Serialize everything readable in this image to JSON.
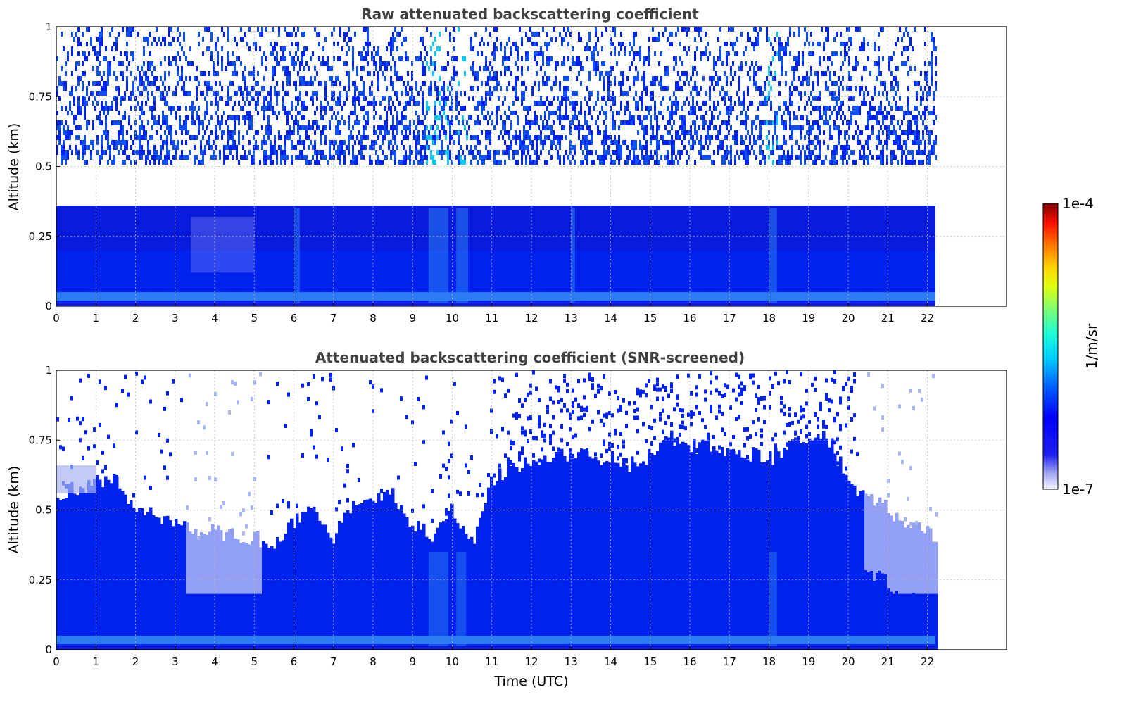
{
  "colors": {
    "white": "#ffffff",
    "blue": "#0022ee",
    "deep_blue": "#0a1ad8",
    "mid_blue": "#1050f0",
    "light_blue": "#2a7cf0",
    "cyan": "#12c8f0",
    "pale": "#aab6f4",
    "grid": "#b8b8b8",
    "title_text": "#404040"
  },
  "colorbar": {
    "label": "1/m/sr",
    "max_label": "1e-4",
    "min_label": "1e-7",
    "colormap": "jet-like (white → blue → cyan → green → yellow → red → dark red)"
  },
  "chart_data": [
    {
      "type": "heatmap",
      "title": "Raw attenuated backscattering coefficient",
      "xlabel": "",
      "ylabel": "Altitude (km)",
      "xlim": [
        0,
        24
      ],
      "ylim": [
        0,
        1
      ],
      "data_extent_x": [
        0,
        22.2
      ],
      "x_ticks": [
        "0",
        "1",
        "2",
        "3",
        "4",
        "5",
        "6",
        "7",
        "8",
        "9",
        "10",
        "11",
        "12",
        "13",
        "14",
        "15",
        "16",
        "17",
        "18",
        "19",
        "20",
        "21",
        "22"
      ],
      "y_ticks": [
        "0",
        "0.25",
        "0.5",
        "0.75",
        "1"
      ],
      "y_tick_values": [
        0,
        0.25,
        0.5,
        0.75,
        1
      ],
      "grid": true,
      "colorbar_units": "1/m/sr",
      "color_scale": "log",
      "color_range": [
        1e-07,
        0.0001
      ],
      "description": "Dense blue backscatter below ~0.35 km, noisy speckle of blue/white above up to 1 km; cyan streaks near 9.5–10.5 UTC and a bright cyan band near 0.03 km."
    },
    {
      "type": "heatmap",
      "title": "Attenuated backscattering coefficient (SNR-screened)",
      "xlabel": "Time (UTC)",
      "ylabel": "Altitude (km)",
      "xlim": [
        0,
        24
      ],
      "ylim": [
        0,
        1
      ],
      "data_extent_x": [
        0,
        22.2
      ],
      "x_ticks": [
        "0",
        "1",
        "2",
        "3",
        "4",
        "5",
        "6",
        "7",
        "8",
        "9",
        "10",
        "11",
        "12",
        "13",
        "14",
        "15",
        "16",
        "17",
        "18",
        "19",
        "20",
        "21",
        "22"
      ],
      "y_ticks": [
        "0",
        "0.25",
        "0.5",
        "0.75",
        "1"
      ],
      "y_tick_values": [
        0,
        0.25,
        0.5,
        0.75,
        1
      ],
      "grid": true,
      "colorbar_units": "1/m/sr",
      "color_scale": "log",
      "color_range": [
        1e-07,
        0.0001
      ],
      "layer_top_km": {
        "t": [
          0,
          0.5,
          1,
          1.5,
          2,
          2.5,
          3,
          3.5,
          4,
          4.5,
          5,
          5.5,
          6,
          6.5,
          7,
          7.5,
          8,
          8.5,
          9,
          9.5,
          10,
          10.5,
          11,
          11.5,
          12,
          12.5,
          13,
          13.5,
          14,
          14.5,
          15,
          15.5,
          16,
          16.5,
          17,
          17.5,
          18,
          18.5,
          19,
          19.5,
          20,
          20.5,
          21,
          21.5,
          22.2
        ],
        "top": [
          0.55,
          0.58,
          0.6,
          0.6,
          0.52,
          0.48,
          0.45,
          0.44,
          0.42,
          0.41,
          0.4,
          0.38,
          0.45,
          0.5,
          0.4,
          0.52,
          0.55,
          0.56,
          0.45,
          0.4,
          0.5,
          0.38,
          0.6,
          0.66,
          0.66,
          0.68,
          0.7,
          0.7,
          0.68,
          0.66,
          0.7,
          0.76,
          0.72,
          0.74,
          0.7,
          0.7,
          0.68,
          0.72,
          0.74,
          0.76,
          0.6,
          0.55,
          0.5,
          0.45,
          0.4
        ]
      },
      "description": "Noise-screened: solid blue boundary layer rising from ~0.4 km (morning) to ~0.7 km (afternoon), white (no signal) above with scattered blue pixels; pale/translucent blue regions near 3–5 UTC and 20.5–22 UTC."
    }
  ]
}
